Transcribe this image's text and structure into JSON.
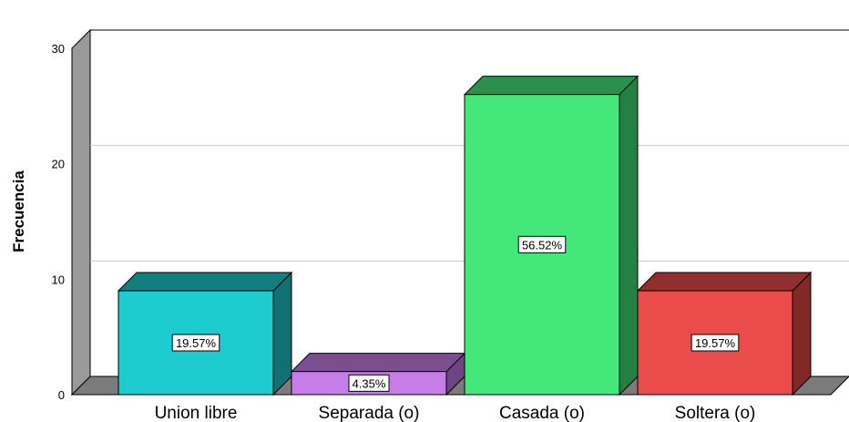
{
  "chart_data": {
    "type": "bar",
    "style": "3d",
    "categories": [
      "Union libre",
      "Separada (o)",
      "Casada (o)",
      "Soltera (o)"
    ],
    "values": [
      9,
      2,
      26,
      9
    ],
    "data_labels": [
      "19.57%",
      "4.35%",
      "56.52%",
      "19.57%"
    ],
    "colors": [
      "#1ecbce",
      "#c77de8",
      "#44e87a",
      "#ea4b4b"
    ],
    "ylabel": "Frecuencia",
    "xlabel": "",
    "ylim": [
      0,
      30
    ],
    "yticks": [
      0,
      10,
      20,
      30
    ],
    "grid": true
  }
}
